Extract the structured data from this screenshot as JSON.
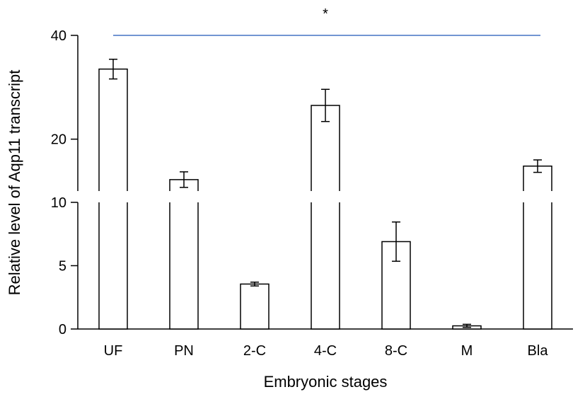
{
  "chart_data": {
    "type": "bar",
    "xlabel": "Embryonic stages",
    "ylabel": "Relative level of Aqp11 transcript",
    "categories": [
      "UF",
      "PN",
      "2-C",
      "4-C",
      "8-C",
      "M",
      "Bla"
    ],
    "values": [
      33.5,
      12.2,
      3.55,
      26.5,
      6.9,
      0.25,
      14.8
    ],
    "errors": [
      1.9,
      1.5,
      0.15,
      3.1,
      1.55,
      0.12,
      1.2
    ],
    "y_axis_break": true,
    "lower_ylim": [
      0,
      10
    ],
    "upper_ylim": [
      10,
      40
    ],
    "lower_ticks": [
      "0",
      "5",
      "10"
    ],
    "upper_ticks": [
      "20",
      "40"
    ],
    "significance": {
      "label": "*",
      "from": "UF",
      "to": "Bla",
      "color": "#4472c4"
    },
    "bar_fill": "#ffffff",
    "bar_stroke": "#000000"
  }
}
